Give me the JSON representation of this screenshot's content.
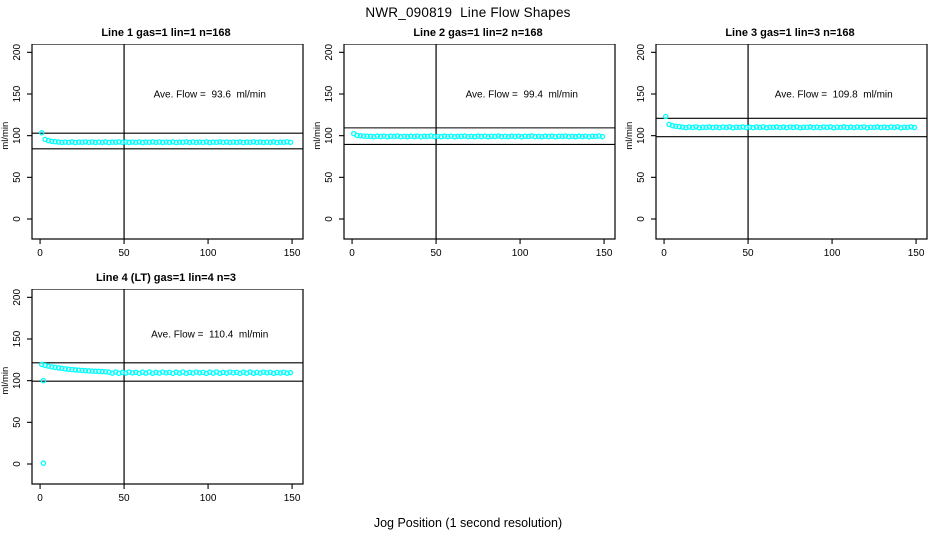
{
  "page": {
    "title": "NWR_090819  Line Flow Shapes",
    "xlabel": "Jog Position (1 second resolution)",
    "background": "#ffffff",
    "marker_color": "#00ffff",
    "line_color": "#000000"
  },
  "chart_data": [
    {
      "type": "scatter",
      "title": "Line 1 gas=1 lin=1 n=168",
      "annotation": "Ave. Flow =  93.6  ml/min",
      "ave_flow": 93.6,
      "ylabel": "ml/min",
      "x_ticks": [
        0,
        50,
        100,
        150
      ],
      "y_ticks": [
        0,
        50,
        100,
        150,
        200
      ],
      "xlim": [
        -4.8,
        156.5
      ],
      "ylim": [
        -24,
        210
      ],
      "vline_x": 50,
      "ref_lines": [
        102.96,
        84.24
      ],
      "annotation_xy": [
        101,
        146
      ],
      "x_start": 1,
      "x_step": 2,
      "y": [
        103.5,
        95.5,
        94.0,
        93.2,
        92.8,
        92.4,
        91.9,
        92.3,
        92.0,
        92.5,
        91.8,
        92.2,
        92.1,
        92.6,
        92.0,
        92.4,
        91.9,
        92.3,
        92.0,
        92.5,
        91.8,
        92.2,
        92.1,
        92.6,
        92.0,
        92.4,
        91.9,
        92.3,
        92.0,
        92.5,
        91.8,
        92.2,
        92.1,
        92.6,
        92.0,
        92.4,
        91.9,
        92.3,
        92.0,
        92.5,
        91.8,
        92.2,
        92.1,
        92.6,
        92.0,
        92.4,
        91.9,
        92.3,
        92.0,
        92.5,
        91.8,
        92.2,
        92.1,
        92.6,
        92.0,
        92.4,
        91.9,
        92.3,
        92.0,
        92.5,
        91.8,
        92.2,
        92.1,
        92.6,
        92.0,
        92.4,
        91.9,
        92.3,
        92.0,
        92.5,
        91.8,
        92.2,
        92.1,
        92.6,
        92.0
      ],
      "extra_points": []
    },
    {
      "type": "scatter",
      "title": "Line 2 gas=1 lin=2 n=168",
      "annotation": "Ave. Flow =  99.4  ml/min",
      "ave_flow": 99.4,
      "ylabel": "ml/min",
      "x_ticks": [
        0,
        50,
        100,
        150
      ],
      "y_ticks": [
        0,
        50,
        100,
        150,
        200
      ],
      "xlim": [
        -4.8,
        156.5
      ],
      "ylim": [
        -24,
        210
      ],
      "vline_x": 50,
      "ref_lines": [
        109.34,
        89.46
      ],
      "annotation_xy": [
        101,
        146
      ],
      "x_start": 1,
      "x_step": 2,
      "y": [
        102.5,
        100.3,
        99.8,
        99.5,
        99.3,
        99.2,
        98.8,
        99.4,
        99.0,
        99.5,
        98.7,
        99.3,
        99.1,
        99.6,
        98.9,
        99.2,
        98.8,
        99.4,
        99.0,
        99.5,
        98.7,
        99.3,
        99.1,
        99.6,
        98.9,
        99.2,
        98.8,
        99.4,
        99.0,
        99.5,
        98.7,
        99.3,
        99.1,
        99.6,
        98.9,
        99.2,
        98.8,
        99.4,
        99.0,
        99.5,
        98.7,
        99.3,
        99.1,
        99.6,
        98.9,
        99.2,
        98.8,
        99.4,
        99.0,
        99.5,
        98.7,
        99.3,
        99.1,
        99.6,
        98.9,
        99.2,
        98.8,
        99.4,
        99.0,
        99.5,
        98.7,
        99.3,
        99.1,
        99.6,
        98.9,
        99.2,
        98.8,
        99.4,
        99.0,
        99.5,
        98.7,
        99.3,
        99.1,
        99.6,
        98.9
      ],
      "extra_points": []
    },
    {
      "type": "scatter",
      "title": "Line 3 gas=1 lin=3 n=168",
      "annotation": "Ave. Flow =  109.8  ml/min",
      "ave_flow": 109.8,
      "ylabel": "ml/min",
      "x_ticks": [
        0,
        50,
        100,
        150
      ],
      "y_ticks": [
        0,
        50,
        100,
        150,
        200
      ],
      "xlim": [
        -4.8,
        156.5
      ],
      "ylim": [
        -24,
        210
      ],
      "vline_x": 50,
      "ref_lines": [
        120.78,
        98.82
      ],
      "annotation_xy": [
        101,
        146
      ],
      "x_start": 1,
      "x_step": 2,
      "y": [
        123.0,
        113.5,
        112.0,
        111.2,
        110.8,
        110.2,
        109.7,
        110.4,
        109.9,
        110.6,
        109.5,
        110.1,
        110.0,
        110.5,
        109.8,
        110.2,
        109.7,
        110.4,
        109.9,
        110.6,
        109.5,
        110.1,
        110.0,
        110.5,
        109.8,
        110.2,
        109.7,
        110.4,
        109.9,
        110.6,
        109.5,
        110.1,
        110.0,
        110.5,
        109.8,
        110.2,
        109.7,
        110.4,
        109.9,
        110.6,
        109.5,
        110.1,
        110.0,
        110.5,
        109.8,
        110.2,
        109.7,
        110.4,
        109.9,
        110.6,
        109.5,
        110.1,
        110.0,
        110.5,
        109.8,
        110.2,
        109.7,
        110.4,
        109.9,
        110.6,
        109.5,
        110.1,
        110.0,
        110.5,
        109.8,
        110.2,
        109.7,
        110.4,
        109.9,
        110.6,
        109.5,
        110.1,
        110.0,
        110.5,
        109.8
      ],
      "extra_points": []
    },
    {
      "type": "scatter",
      "title": "Line 4 (LT) gas=1 lin=4 n=3",
      "annotation": "Ave. Flow =  110.4  ml/min",
      "ave_flow": 110.4,
      "ylabel": "ml/min",
      "x_ticks": [
        0,
        50,
        100,
        150
      ],
      "y_ticks": [
        0,
        50,
        100,
        150,
        200
      ],
      "xlim": [
        -4.8,
        156.5
      ],
      "ylim": [
        -24,
        210
      ],
      "vline_x": 50,
      "ref_lines": [
        121.44,
        99.36
      ],
      "annotation_xy": [
        101,
        152
      ],
      "x_start": 1,
      "x_step": 2,
      "y": [
        119.5,
        118.3,
        117.4,
        116.6,
        115.9,
        115.3,
        114.7,
        114.2,
        113.7,
        113.3,
        112.9,
        112.6,
        112.3,
        112.0,
        111.7,
        111.5,
        111.3,
        111.1,
        110.9,
        110.7,
        110.2,
        109.0,
        110.4,
        108.9,
        109.9,
        109.1,
        110.3,
        109.4,
        110.0,
        108.8,
        110.2,
        109.0,
        110.4,
        108.9,
        109.9,
        109.1,
        110.3,
        109.4,
        110.0,
        108.8,
        110.2,
        109.0,
        110.4,
        108.9,
        109.9,
        109.1,
        110.3,
        109.4,
        110.0,
        108.8,
        110.2,
        109.0,
        110.4,
        108.9,
        109.9,
        109.1,
        110.3,
        109.4,
        110.0,
        108.8,
        110.2,
        109.0,
        110.4,
        108.9,
        109.9,
        109.1,
        110.3,
        109.4,
        110.0,
        108.8,
        109.8,
        109.2,
        110.1,
        109.0,
        109.6
      ],
      "extra_points": [
        [
          2,
          100
        ],
        [
          2,
          1
        ]
      ]
    }
  ]
}
